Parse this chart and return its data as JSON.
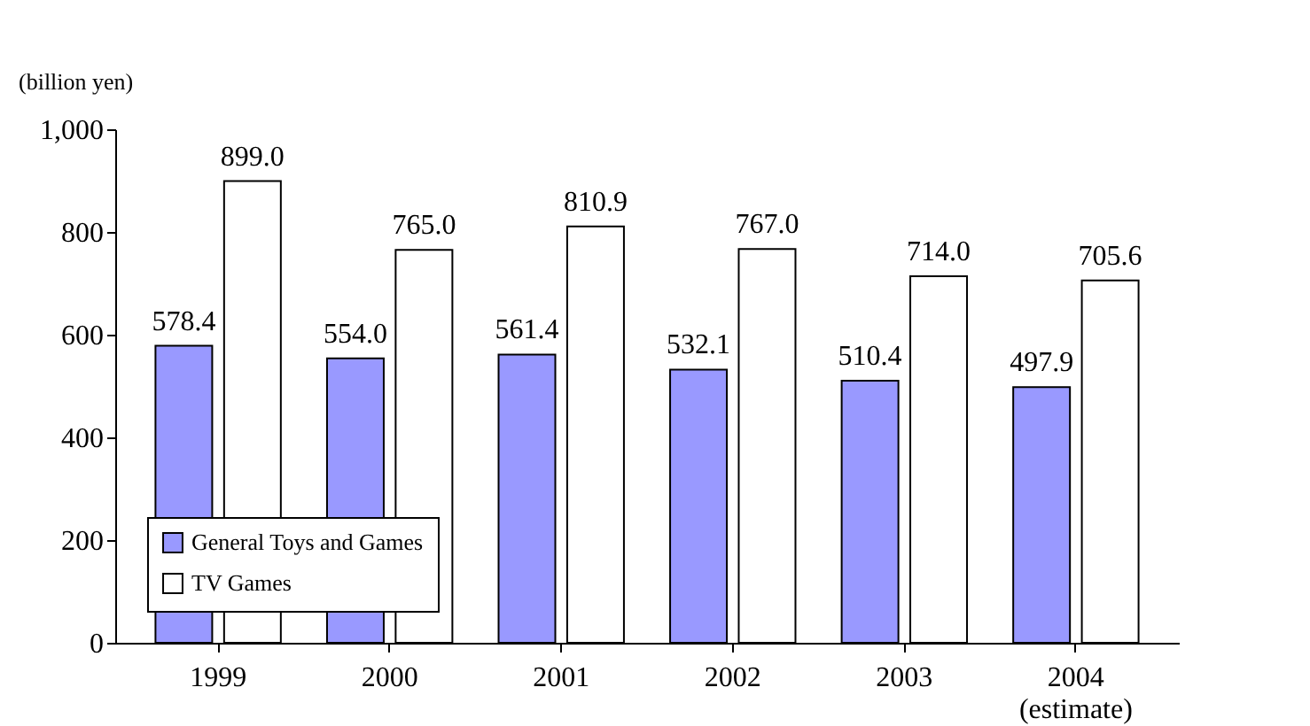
{
  "chart_data": {
    "type": "bar",
    "ylabel": "(billion yen)",
    "categories": [
      "1999",
      "2000",
      "2001",
      "2002",
      "2003",
      "2004\n(estimate)"
    ],
    "series": [
      {
        "name": "General Toys and Games",
        "color": "#9999ff",
        "values": [
          578.4,
          554.0,
          561.4,
          532.1,
          510.4,
          497.9
        ],
        "value_labels": [
          "578.4",
          "554.0",
          "561.4",
          "532.1",
          "510.4",
          "497.9"
        ]
      },
      {
        "name": "TV Games",
        "color": "#ffffff",
        "values": [
          899.0,
          765.0,
          810.9,
          767.0,
          714.0,
          705.6
        ],
        "value_labels": [
          "899.0",
          "765.0",
          "810.9",
          "767.0",
          "714.0",
          "705.6"
        ]
      }
    ],
    "ylim": [
      0,
      1000
    ],
    "yticks": [
      0,
      200,
      400,
      600,
      800,
      {
        "value": 1000,
        "label": "1,000"
      }
    ],
    "grid": false,
    "legend": "bottom left"
  }
}
